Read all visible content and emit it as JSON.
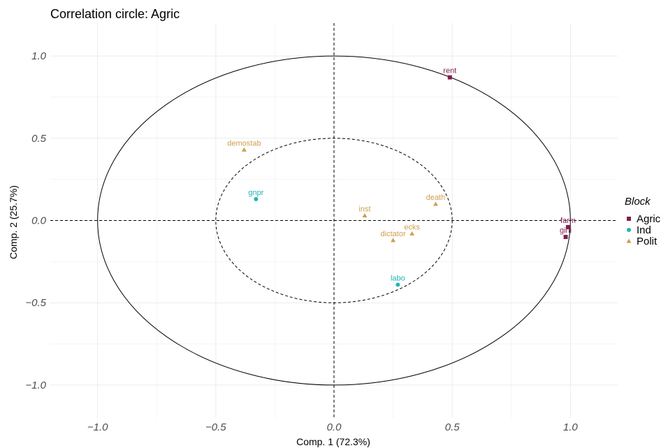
{
  "chart_data": {
    "type": "scatter",
    "title": "Correlation circle: Agric",
    "xlabel": "Comp. 1 (72.3%)",
    "ylabel": "Comp. 2 (25.7%)",
    "xlim": [
      -1.2,
      1.2
    ],
    "ylim": [
      -1.2,
      1.2
    ],
    "x_ticks": [
      -1.0,
      -0.5,
      0.0,
      0.5,
      1.0
    ],
    "y_ticks": [
      -1.0,
      -0.5,
      0.0,
      0.5,
      1.0
    ],
    "x_tick_labels": [
      "−1.0",
      "−0.5",
      "0.0",
      "0.5",
      "1.0"
    ],
    "y_tick_labels": [
      "−1.0",
      "−0.5",
      "0.0",
      "0.5",
      "1.0"
    ],
    "grid": true,
    "circles": [
      1.0,
      0.5
    ],
    "legend": {
      "title": "Block",
      "placement": "right",
      "entries": [
        {
          "name": "Agric",
          "color": "#7f1d4f",
          "shape": "square"
        },
        {
          "name": "Ind",
          "color": "#21b3b6",
          "shape": "circle"
        },
        {
          "name": "Polit",
          "color": "#cf9e4f",
          "shape": "triangle"
        }
      ]
    },
    "points": [
      {
        "label": "rent",
        "block": "Agric",
        "x": 0.49,
        "y": 0.87
      },
      {
        "label": "farm",
        "block": "Agric",
        "x": 0.99,
        "y": -0.04
      },
      {
        "label": "gini",
        "block": "Agric",
        "x": 0.98,
        "y": -0.1
      },
      {
        "label": "gnpr",
        "block": "Ind",
        "x": -0.33,
        "y": 0.13
      },
      {
        "label": "labo",
        "block": "Ind",
        "x": 0.27,
        "y": -0.39
      },
      {
        "label": "demostab",
        "block": "Polit",
        "x": -0.38,
        "y": 0.43
      },
      {
        "label": "inst",
        "block": "Polit",
        "x": 0.13,
        "y": 0.03
      },
      {
        "label": "death",
        "block": "Polit",
        "x": 0.43,
        "y": 0.1
      },
      {
        "label": "ecks",
        "block": "Polit",
        "x": 0.33,
        "y": -0.08
      },
      {
        "label": "dictator",
        "block": "Polit",
        "x": 0.25,
        "y": -0.12
      }
    ]
  }
}
